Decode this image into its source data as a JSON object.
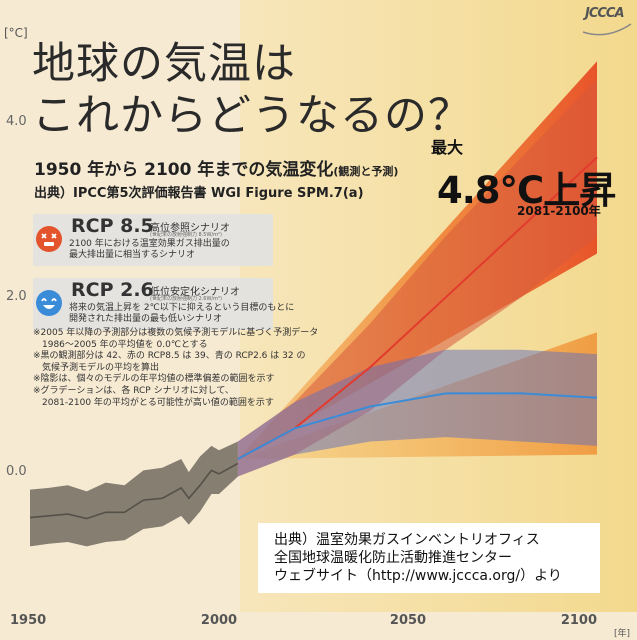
{
  "title_line1": "地球の気温は",
  "title_line2": "これからどうなるの？",
  "subtitle": "1950 年から 2100 年までの気温変化",
  "subtitle_note": "(観測と予測)",
  "source": "出典）IPCC第5次評価報告書 WGI Figure SPM.7(a)",
  "unit_label": "[°C]",
  "year_unit": "[年]",
  "max": {
    "label": "最大",
    "value": "4.8°C上昇",
    "period": "2081-2100年"
  },
  "scenarios": [
    {
      "name": "RCP 8.5",
      "desc": "高位参照シナリオ",
      "forcing": "(世紀末の放射強制力 8.5W/m²)",
      "note_line1": "2100 年における温室効果ガス排出量の",
      "note_line2": "最大排出量に相当するシナリオ",
      "icon": "dizzy-face-icon",
      "color": "#e4542c"
    },
    {
      "name": "RCP 2.6",
      "desc": "低位安定化シナリオ",
      "forcing": "(世紀末の放射強制力 2.6W/m²)",
      "note_line1": "将来の気温上昇を 2℃以下に抑えるという目標のもとに",
      "note_line2": "開発された排出量の最も低いシナリオ",
      "icon": "smiley-face-icon",
      "color": "#3a8cd8"
    }
  ],
  "notes": [
    "※2005 年以降の予測部分は複数の気候予測モデルに基づく予測データ",
    "　1986～2005 年の平均値を 0.0℃とする",
    "※黒の観測部分は 42、赤の RCP8.5 は 39、青の RCP2.6 は 32 の",
    "　気候予測モデルの平均を算出",
    "※陰影は、個々のモデルの年平均値の標準偏差の範囲を示す",
    "※グラデーションは、各 RCP シナリオに対して、",
    "　2081-2100 年の平均がとる可能性が高い値の範囲を示す"
  ],
  "credit": [
    "出典）温室効果ガスインベントリオフィス",
    "全国地球温暖化防止活動推進センター",
    "ウェブサイト（http://www.jccca.org/）より"
  ],
  "logo": {
    "text": "JCCCA"
  },
  "colors": {
    "background": "#f6ead3",
    "projection_bg": "#f7e3b0",
    "rcp85": "#e4542c",
    "rcp26": "#3a8cd8",
    "observed": "#555048"
  },
  "chart_data": {
    "type": "line",
    "xlim": [
      1950,
      2100
    ],
    "ylim": [
      -1.5,
      5.5
    ],
    "xticks": [
      1950,
      2000,
      2050,
      2100
    ],
    "yticks": [
      0.0,
      2.0,
      4.0
    ],
    "ytick_labels": [
      "0.0",
      "2.0",
      "4.0"
    ],
    "grid": false,
    "series": [
      {
        "name": "",
        "x": [
          1950,
          1955,
          1960,
          1965,
          1970,
          1975,
          1980,
          1985,
          1990,
          1992,
          1995,
          1998,
          2000,
          2005
        ],
        "y": [
          -0.42,
          -0.4,
          -0.38,
          -0.43,
          -0.36,
          -0.36,
          -0.22,
          -0.2,
          -0.08,
          -0.2,
          -0.05,
          0.12,
          0.08,
          0.2
        ],
        "lower": [
          -0.75,
          -0.72,
          -0.7,
          -0.75,
          -0.7,
          -0.68,
          -0.55,
          -0.52,
          -0.4,
          -0.5,
          -0.35,
          -0.15,
          -0.15,
          0.05
        ],
        "upper": [
          -0.1,
          -0.08,
          -0.05,
          -0.12,
          -0.02,
          -0.05,
          0.12,
          0.15,
          0.25,
          0.1,
          0.28,
          0.4,
          0.35,
          0.45
        ]
      },
      {
        "name": "RCP 8.5",
        "x": [
          2005,
          2020,
          2040,
          2060,
          2080,
          2100
        ],
        "y": [
          0.25,
          0.6,
          1.3,
          2.1,
          2.9,
          3.7
        ],
        "lower": [
          0.05,
          0.3,
          0.8,
          1.5,
          2.1,
          2.8
        ],
        "upper": [
          0.45,
          0.9,
          1.8,
          2.8,
          3.7,
          4.6
        ]
      },
      {
        "name": "RCP 2.6",
        "x": [
          2005,
          2020,
          2040,
          2060,
          2080,
          2100
        ],
        "y": [
          0.25,
          0.6,
          0.85,
          1.0,
          1.0,
          0.95
        ],
        "lower": [
          0.05,
          0.3,
          0.45,
          0.5,
          0.45,
          0.4
        ],
        "upper": [
          0.45,
          0.9,
          1.3,
          1.5,
          1.5,
          1.45
        ]
      }
    ],
    "ranges_2081_2100": [
      {
        "name": "RCP 8.5",
        "min": 2.6,
        "max": 4.8
      },
      {
        "name": "RCP 2.6",
        "min": 0.3,
        "max": 1.7
      }
    ]
  }
}
